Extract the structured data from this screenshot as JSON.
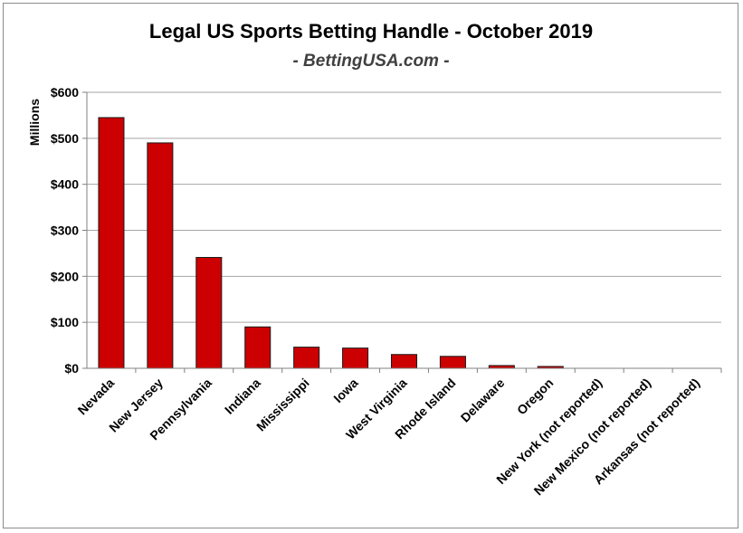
{
  "chart_data": {
    "type": "bar",
    "title": "Legal US Sports Betting Handle - October 2019",
    "subtitle": "- BettingUSA.com -",
    "xlabel": "",
    "ylabel": "Millions",
    "ylim": [
      0,
      600
    ],
    "yticks": [
      0,
      100,
      200,
      300,
      400,
      500,
      600
    ],
    "ytick_labels": [
      "$0",
      "$100",
      "$200",
      "$300",
      "$400",
      "$500",
      "$600"
    ],
    "grid": true,
    "legend": "none",
    "bar_color": "#cc0000",
    "categories": [
      "Nevada",
      "New Jersey",
      "Pennsylvania",
      "Indiana",
      "Mississippi",
      "Iowa",
      "West Virginia",
      "Rhode Island",
      "Delaware",
      "Oregon",
      "New York (not reported)",
      "New Mexico (not reported)",
      "Arkansas (not reported)"
    ],
    "values": [
      545,
      490,
      241,
      90,
      46,
      44,
      30,
      26,
      6,
      4,
      0,
      0,
      0
    ]
  }
}
